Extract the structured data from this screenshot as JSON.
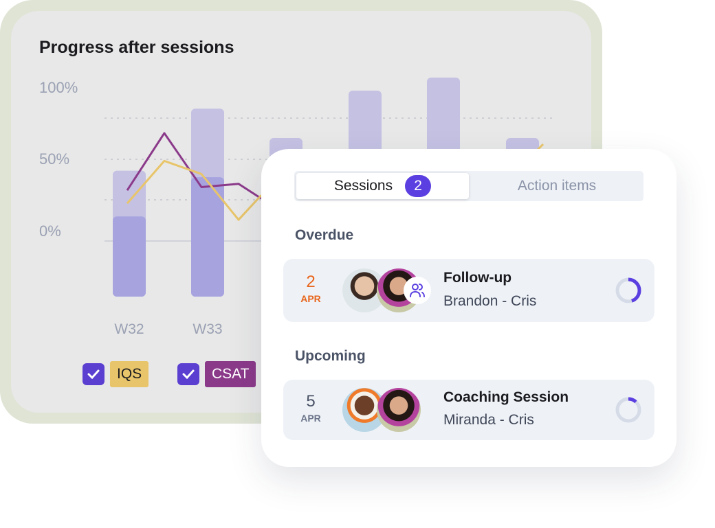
{
  "chart_card": {
    "title": "Progress after sessions",
    "legend": [
      {
        "label": "IQS",
        "color": "#e8c56a",
        "checked": true
      },
      {
        "label": "CSAT",
        "color": "#8b3a8a",
        "checked": true
      }
    ]
  },
  "chart_data": {
    "type": "bar",
    "title": "Progress after sessions",
    "yticks": [
      "100%",
      "50%",
      "0%"
    ],
    "categories": [
      "W32",
      "W33"
    ],
    "bars_light": [
      43,
      81,
      63,
      92,
      100,
      63
    ],
    "bars_dark": [
      15,
      39
    ],
    "lines": [
      {
        "name": "CSAT",
        "color": "#8b3a8a",
        "values": [
          31,
          66,
          33,
          35,
          26
        ]
      },
      {
        "name": "IQS",
        "color": "#e8c56a",
        "values": [
          23,
          49,
          41,
          13,
          28
        ]
      }
    ],
    "ylim": [
      0,
      100
    ],
    "grid": "dotted"
  },
  "sessions": {
    "tabs": [
      {
        "label": "Sessions",
        "badge": "2",
        "active": true
      },
      {
        "label": "Action items",
        "active": false
      }
    ],
    "sections": [
      {
        "title": "Overdue",
        "items": [
          {
            "day": "2",
            "month": "APR",
            "title": "Follow-up",
            "people": "Brandon - Cris",
            "date_color": "#e8651c",
            "progress": 0.45
          }
        ]
      },
      {
        "title": "Upcoming",
        "items": [
          {
            "day": "5",
            "month": "APR",
            "title": "Coaching Session",
            "people": "Miranda - Cris",
            "date_color": "#4a5366",
            "progress": 0.12
          }
        ]
      }
    ],
    "accent": "#5b3fe0"
  }
}
